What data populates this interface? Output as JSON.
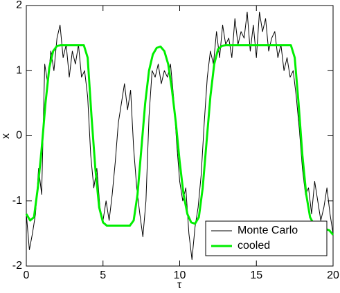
{
  "chart_data": {
    "type": "line",
    "xlabel": "τ",
    "ylabel": "x",
    "xlim": [
      0,
      20
    ],
    "xticks": [
      0,
      5,
      10,
      15,
      20
    ],
    "ylim": [
      -2,
      2
    ],
    "yticks": [
      -2,
      -1,
      0,
      1,
      2
    ],
    "legend": "lower right",
    "series": [
      {
        "name": "Monte Carlo",
        "color": "#000000",
        "width": 1,
        "x": [
          0,
          0.2,
          0.4,
          0.6,
          0.8,
          1,
          1.2,
          1.4,
          1.6,
          1.8,
          2,
          2.2,
          2.4,
          2.6,
          2.8,
          3,
          3.2,
          3.4,
          3.6,
          3.8,
          4,
          4.2,
          4.4,
          4.6,
          4.8,
          5,
          5.2,
          5.4,
          5.6,
          5.8,
          6,
          6.2,
          6.4,
          6.6,
          6.8,
          7,
          7.2,
          7.4,
          7.6,
          7.8,
          8,
          8.2,
          8.4,
          8.6,
          8.8,
          9,
          9.2,
          9.4,
          9.6,
          9.8,
          10,
          10.2,
          10.4,
          10.6,
          10.8,
          11,
          11.2,
          11.4,
          11.6,
          11.8,
          12,
          12.2,
          12.4,
          12.6,
          12.8,
          13,
          13.2,
          13.4,
          13.6,
          13.8,
          14,
          14.2,
          14.4,
          14.6,
          14.8,
          15,
          15.2,
          15.4,
          15.6,
          15.8,
          16,
          16.2,
          16.4,
          16.6,
          16.8,
          17,
          17.2,
          17.4,
          17.6,
          17.8,
          18,
          18.2,
          18.4,
          18.6,
          18.8,
          19,
          19.2,
          19.4,
          19.6,
          19.8,
          20
        ],
        "values": [
          -1.2,
          -1.75,
          -1.5,
          -1.2,
          -0.5,
          -0.9,
          1.1,
          0.8,
          1.3,
          1.0,
          1.5,
          1.7,
          1.2,
          1.4,
          0.9,
          1.3,
          1.1,
          1.4,
          0.9,
          1.0,
          0.6,
          -0.3,
          -0.8,
          -0.5,
          -1.1,
          -1.3,
          -1.0,
          -1.3,
          -0.9,
          -0.4,
          0.2,
          0.5,
          0.8,
          0.4,
          0.7,
          -0.2,
          -0.8,
          -1.2,
          -1.55,
          -1.0,
          0.3,
          1.0,
          0.9,
          1.1,
          0.8,
          1.0,
          0.9,
          1.1,
          0.6,
          -0.1,
          -0.7,
          -1.0,
          -0.8,
          -1.5,
          -1.9,
          -1.4,
          -1.1,
          -0.6,
          0.2,
          0.9,
          1.3,
          1.1,
          1.6,
          1.2,
          1.7,
          1.4,
          1.5,
          1.2,
          1.8,
          1.4,
          1.6,
          1.5,
          1.9,
          1.3,
          1.7,
          1.2,
          1.9,
          1.6,
          1.8,
          1.3,
          1.5,
          1.6,
          1.2,
          1.4,
          1.0,
          1.2,
          0.9,
          1.0,
          0.6,
          0.1,
          -0.5,
          -0.9,
          -0.8,
          -1.2,
          -0.7,
          -1.0,
          -1.3,
          -1.1,
          -0.8,
          -1.2,
          -1.5
        ]
      },
      {
        "name": "cooled",
        "color": "#00ee00",
        "width": 3,
        "x": [
          0,
          0.25,
          0.5,
          0.75,
          1,
          1.25,
          1.5,
          1.75,
          2,
          2.25,
          2.5,
          2.75,
          3,
          3.25,
          3.5,
          3.75,
          4,
          4.25,
          4.5,
          4.75,
          5,
          5.25,
          5.5,
          5.75,
          6,
          6.25,
          6.5,
          6.75,
          7,
          7.25,
          7.5,
          7.75,
          8,
          8.25,
          8.5,
          8.75,
          9,
          9.25,
          9.5,
          9.75,
          10,
          10.25,
          10.5,
          10.75,
          11,
          11.25,
          11.5,
          11.75,
          12,
          12.25,
          12.5,
          12.75,
          13,
          13.25,
          13.5,
          13.75,
          14,
          14.25,
          14.5,
          14.75,
          15,
          15.25,
          15.5,
          15.75,
          16,
          16.25,
          16.5,
          16.75,
          17,
          17.25,
          17.5,
          17.75,
          18,
          18.25,
          18.5,
          18.75,
          19,
          19.25,
          19.5,
          19.75,
          20
        ],
        "values": [
          -1.2,
          -1.3,
          -1.25,
          -0.8,
          -0.2,
          0.5,
          1.05,
          1.3,
          1.38,
          1.39,
          1.39,
          1.39,
          1.39,
          1.39,
          1.39,
          1.39,
          1.2,
          0.3,
          -0.5,
          -1.1,
          -1.33,
          -1.38,
          -1.38,
          -1.38,
          -1.38,
          -1.38,
          -1.38,
          -1.38,
          -1.3,
          -0.9,
          -0.2,
          0.5,
          1.0,
          1.25,
          1.35,
          1.37,
          1.3,
          1.1,
          0.7,
          0.2,
          -0.4,
          -0.9,
          -1.2,
          -1.33,
          -1.35,
          -1.25,
          -0.8,
          -0.1,
          0.6,
          1.1,
          1.33,
          1.38,
          1.39,
          1.39,
          1.39,
          1.39,
          1.39,
          1.39,
          1.39,
          1.39,
          1.39,
          1.39,
          1.39,
          1.39,
          1.39,
          1.39,
          1.39,
          1.39,
          1.39,
          1.39,
          1.2,
          0.5,
          -0.3,
          -0.9,
          -1.25,
          -1.36,
          -1.4,
          -1.42,
          -1.43,
          -1.45,
          -1.52
        ]
      }
    ]
  }
}
